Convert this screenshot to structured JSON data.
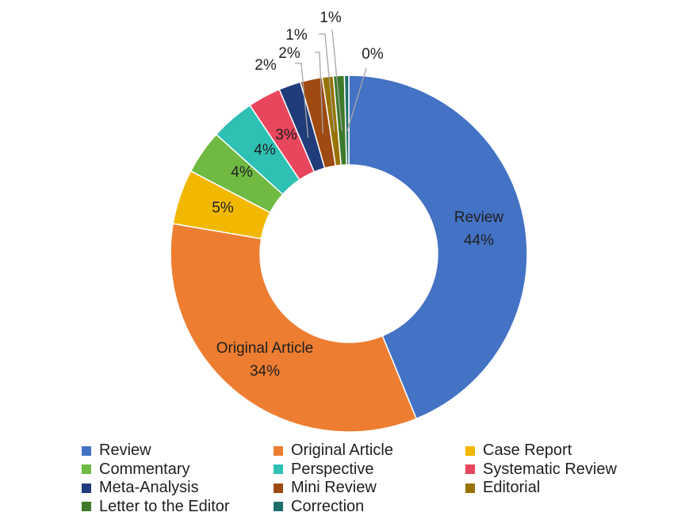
{
  "chart_data": {
    "type": "pie",
    "donut": true,
    "categories": [
      "Review",
      "Original Article",
      "Case Report",
      "Commentary",
      "Perspective",
      "Systematic Review",
      "Meta-Analysis",
      "Mini Review",
      "Editorial",
      "Letter to the Editor",
      "Correction"
    ],
    "values": [
      44,
      34,
      5,
      4,
      4,
      3,
      2,
      2,
      1,
      1,
      0.4
    ],
    "labels": [
      "44%",
      "34%",
      "5%",
      "4%",
      "4%",
      "3%",
      "2%",
      "2%",
      "1%",
      "1%",
      "0%"
    ],
    "colors": [
      "#4472C4",
      "#ED7D31",
      "#F2B800",
      "#70B943",
      "#2FC0B4",
      "#E8465C",
      "#203C7A",
      "#9E4A10",
      "#987300",
      "#3E7A2A",
      "#1F6E6A"
    ],
    "legend_position": "bottom"
  },
  "legend": {
    "items": [
      "Review",
      "Original Article",
      "Case Report",
      "Commentary",
      "Perspective",
      "Systematic Review",
      "Meta-Analysis",
      "Mini Review",
      "Editorial",
      "Letter to the Editor",
      "Correction"
    ]
  }
}
